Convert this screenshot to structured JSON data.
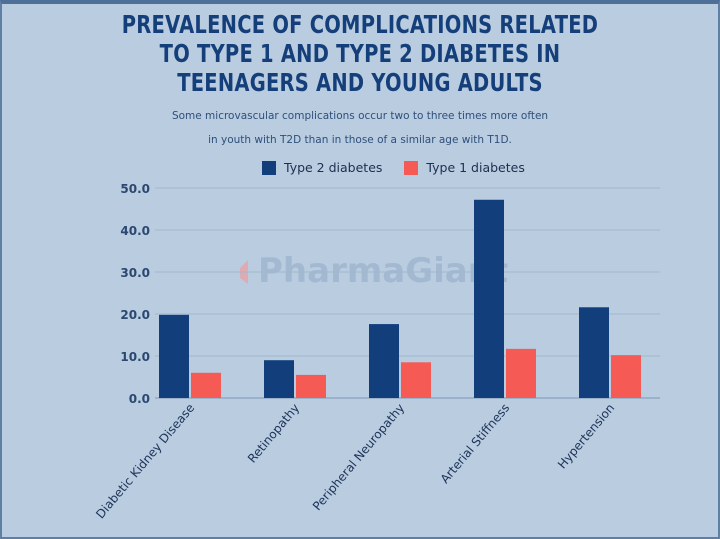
{
  "chart_data": {
    "type": "bar",
    "title": "PREVALENCE OF COMPLICATIONS RELATED TO TYPE 1 AND TYPE 2 DIABETES IN TEENAGERS AND YOUNG ADULTS",
    "title_lines": [
      "PREVALENCE OF COMPLICATIONS RELATED",
      "TO TYPE 1 AND TYPE 2 DIABETES IN",
      "TEENAGERS AND YOUNG ADULTS"
    ],
    "subtitle_lines": [
      "Some microvascular complications occur two to three times more often",
      "in youth with T2D than in those of a similar age with T1D."
    ],
    "categories": [
      "Diabetic Kidney Disease",
      "Retinopathy",
      "Peripheral Neuropathy",
      "Arterial Stiffness",
      "Hypertension"
    ],
    "series": [
      {
        "name": "Type 2 diabetes",
        "color": "#123f7c",
        "values": [
          19.8,
          9.0,
          17.6,
          47.2,
          21.6
        ]
      },
      {
        "name": "Type 1 diabetes",
        "color": "#f55a55",
        "values": [
          6.0,
          5.5,
          8.5,
          11.7,
          10.2
        ]
      }
    ],
    "yticks": [
      "0.0",
      "10.0",
      "20.0",
      "30.0",
      "40.0",
      "50.0"
    ],
    "ylim": [
      0,
      50
    ],
    "grid": true,
    "legend": "top",
    "xlabel": "",
    "ylabel": ""
  },
  "watermark": "PharmaGiant",
  "colors": {
    "background": "#b9cce0",
    "title": "#153f7a"
  }
}
